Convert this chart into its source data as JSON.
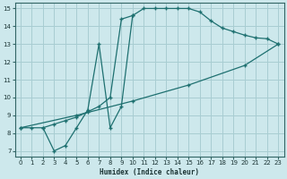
{
  "xlabel": "Humidex (Indice chaleur)",
  "bg_color": "#cde8ec",
  "grid_color": "#a8cdd2",
  "line_color": "#1e7070",
  "xlim": [
    -0.5,
    23.5
  ],
  "ylim": [
    6.7,
    15.3
  ],
  "xticks": [
    0,
    1,
    2,
    3,
    4,
    5,
    6,
    7,
    8,
    9,
    10,
    11,
    12,
    13,
    14,
    15,
    16,
    17,
    18,
    19,
    20,
    21,
    22,
    23
  ],
  "yticks": [
    7,
    8,
    9,
    10,
    11,
    12,
    13,
    14,
    15
  ],
  "line1_x": [
    0,
    1,
    2,
    3,
    4,
    5,
    6,
    7,
    8,
    9,
    10,
    11,
    12,
    13,
    14,
    15,
    16,
    17,
    18,
    19,
    20,
    21,
    22,
    23
  ],
  "line1_y": [
    8.3,
    8.3,
    8.3,
    8.5,
    8.7,
    8.9,
    9.2,
    9.5,
    10.0,
    14.4,
    14.6,
    15.0,
    15.0,
    15.0,
    15.0,
    15.0,
    14.8,
    14.3,
    13.9,
    13.7,
    13.5,
    13.35,
    13.3,
    13.0
  ],
  "line2_x": [
    2,
    3,
    4,
    5,
    6,
    7,
    8,
    9,
    10
  ],
  "line2_y": [
    8.3,
    7.0,
    7.3,
    8.3,
    9.3,
    13.0,
    8.3,
    9.5,
    14.6
  ],
  "line3_x": [
    0,
    5,
    10,
    15,
    20,
    23
  ],
  "line3_y": [
    8.3,
    9.0,
    9.8,
    10.7,
    11.8,
    13.0
  ]
}
